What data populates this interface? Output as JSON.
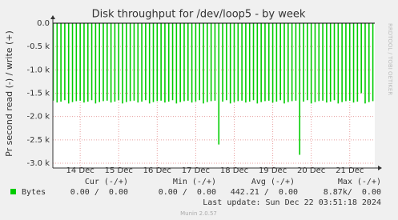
{
  "chart_data": {
    "type": "bar",
    "title": "Disk throughput for /dev/loop5 - by week",
    "y_label": "Pr second read (-) / write (+)",
    "watermark": "RRDTOOL / TOBI OETIKER",
    "x": [
      13.3,
      13.4,
      13.5,
      13.6,
      13.7,
      13.8,
      13.9,
      14.0,
      14.1,
      14.2,
      14.3,
      14.4,
      14.5,
      14.6,
      14.7,
      14.8,
      14.9,
      15.0,
      15.1,
      15.2,
      15.3,
      15.4,
      15.5,
      15.6,
      15.7,
      15.8,
      15.9,
      16.0,
      16.1,
      16.2,
      16.3,
      16.4,
      16.5,
      16.6,
      16.7,
      16.8,
      16.9,
      17.0,
      17.1,
      17.2,
      17.3,
      17.4,
      17.5,
      17.6,
      17.7,
      17.8,
      17.9,
      18.0,
      18.1,
      18.2,
      18.3,
      18.4,
      18.5,
      18.6,
      18.7,
      18.8,
      18.9,
      19.0,
      19.1,
      19.2,
      19.3,
      19.4,
      19.5,
      19.6,
      19.7,
      19.8,
      19.9,
      20.0,
      20.1,
      20.2,
      20.3,
      20.4,
      20.5,
      20.6,
      20.7,
      20.8,
      20.9,
      21.0,
      21.1,
      21.2,
      21.3,
      21.4,
      21.5,
      21.6
    ],
    "series": [
      {
        "name": "Bytes",
        "color": "#00cc00",
        "values": [
          -1660,
          -1700,
          -1680,
          -1650,
          -1720,
          -1690,
          -1670,
          -1660,
          -1700,
          -1680,
          -1650,
          -1720,
          -1690,
          -1670,
          -1660,
          -1700,
          -1680,
          -1650,
          -1720,
          -1690,
          -1670,
          -1660,
          -1700,
          -1680,
          -1650,
          -1720,
          -1690,
          -1670,
          -1660,
          -1700,
          -1680,
          -1650,
          -1720,
          -1690,
          -1670,
          -1660,
          -1700,
          -1680,
          -1650,
          -1720,
          -1690,
          -1670,
          -1660,
          -2600,
          -1680,
          -1650,
          -1720,
          -1690,
          -1670,
          -1660,
          -1700,
          -1680,
          -1650,
          -1720,
          -1690,
          -1670,
          -1660,
          -1700,
          -1680,
          -1650,
          -1720,
          -1690,
          -1670,
          -1660,
          -2820,
          -1680,
          -1650,
          -1720,
          -1690,
          -1670,
          -1660,
          -1700,
          -1680,
          -1650,
          -1720,
          -1690,
          -1670,
          -1660,
          -1700,
          -1680,
          -1500,
          -1720,
          -1690,
          -1670
        ]
      }
    ],
    "xlim": [
      13.29,
      21.65
    ],
    "xticks": [
      {
        "value": 14,
        "label": "14 Dec"
      },
      {
        "value": 15,
        "label": "15 Dec"
      },
      {
        "value": 16,
        "label": "16 Dec"
      },
      {
        "value": 17,
        "label": "17 Dec"
      },
      {
        "value": 18,
        "label": "18 Dec"
      },
      {
        "value": 19,
        "label": "19 Dec"
      },
      {
        "value": 20,
        "label": "20 Dec"
      },
      {
        "value": 21,
        "label": "21 Dec"
      }
    ],
    "ylim": [
      -3000,
      0
    ],
    "yticks": [
      {
        "value": 0,
        "label": "0.0"
      },
      {
        "value": -500,
        "label": "-0.5 k"
      },
      {
        "value": -1000,
        "label": "-1.0 k"
      },
      {
        "value": -1500,
        "label": "-1.5 k"
      },
      {
        "value": -2000,
        "label": "-2.0 k"
      },
      {
        "value": -2500,
        "label": "-2.5 k"
      },
      {
        "value": -3000,
        "label": "-3.0 k"
      }
    ],
    "grid": true,
    "legend_table": {
      "headers": [
        "Cur (-/+)",
        "Min (-/+)",
        "Avg (-/+)",
        "Max (-/+)"
      ],
      "row": [
        "0.00 /  0.00",
        "0.00 /  0.00",
        "442.21 /  0.00",
        "8.87k/  0.00"
      ]
    },
    "last_update": "Last update: Sun Dec 22 03:51:18 2024",
    "footer": "Munin 2.0.57"
  }
}
